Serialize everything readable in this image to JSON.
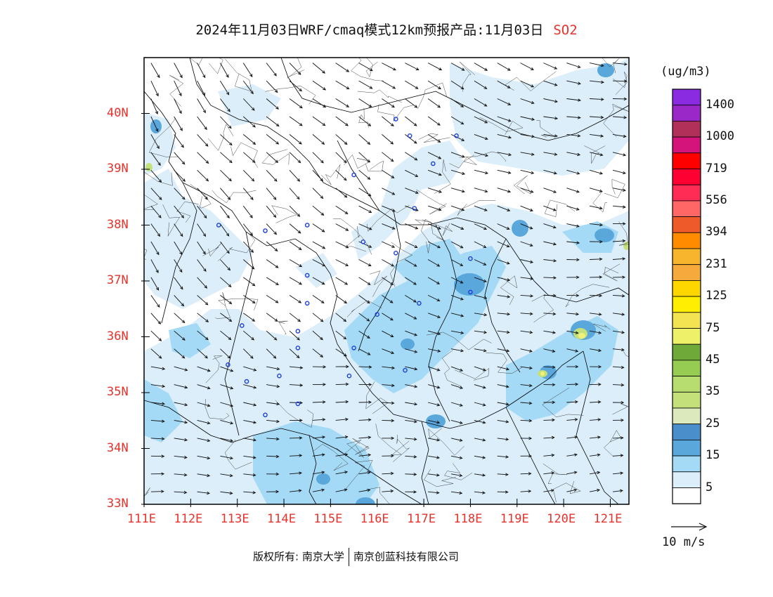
{
  "title": {
    "text": "2024年11月03日WRF/cmaq模式12km预报产品:11月03日",
    "pollutant": "SO2"
  },
  "map": {
    "lat_labels": [
      "40N",
      "39N",
      "38N",
      "37N",
      "36N",
      "35N",
      "34N",
      "33N"
    ],
    "lon_labels": [
      "111E",
      "112E",
      "113E",
      "114E",
      "115E",
      "116E",
      "117E",
      "118E",
      "119E",
      "120E",
      "121E"
    ],
    "lat_range": [
      33,
      41
    ],
    "lon_range": [
      111,
      121.4
    ],
    "fill_colors": {
      "background": "#ffffff",
      "level_5": "#dbeefa",
      "level_15": "#a4daf6",
      "level_25": "#5aa7dc",
      "level_35": "#c3e07a",
      "level_75": "#f0f07a"
    },
    "monitoring_sites": [
      [
        116.4,
        39.9
      ],
      [
        116.7,
        39.6
      ],
      [
        117.2,
        39.1
      ],
      [
        117.7,
        39.6
      ],
      [
        115.5,
        38.9
      ],
      [
        116.8,
        38.3
      ],
      [
        114.5,
        38.0
      ],
      [
        113.6,
        37.9
      ],
      [
        112.6,
        38.0
      ],
      [
        115.7,
        37.7
      ],
      [
        116.4,
        37.5
      ],
      [
        114.5,
        37.1
      ],
      [
        114.5,
        36.6
      ],
      [
        116.0,
        36.4
      ],
      [
        116.9,
        36.6
      ],
      [
        118.0,
        36.8
      ],
      [
        118.0,
        37.4
      ],
      [
        113.1,
        36.2
      ],
      [
        114.3,
        36.1
      ],
      [
        114.3,
        35.8
      ],
      [
        115.5,
        35.8
      ],
      [
        112.8,
        35.5
      ],
      [
        113.2,
        35.2
      ],
      [
        113.9,
        35.3
      ],
      [
        115.4,
        35.3
      ],
      [
        116.6,
        35.4
      ],
      [
        114.3,
        34.8
      ],
      [
        113.6,
        34.6
      ]
    ]
  },
  "legend": {
    "unit": "(ug/m3)",
    "colors": [
      "#ffffff",
      "#dbeefa",
      "#a4daf6",
      "#5aa7dc",
      "#4a8fcb",
      "#dbe9bd",
      "#c3e07a",
      "#b7dc70",
      "#96cc52",
      "#6ea93a",
      "#eef068",
      "#f3e352",
      "#ffee00",
      "#ffd700",
      "#f6aa3c",
      "#f7b52e",
      "#ff8c00",
      "#ee5a28",
      "#ff6666",
      "#ff2d55",
      "#ff0033",
      "#ff0000",
      "#d4147a",
      "#b0305a",
      "#9a28c8",
      "#8a2be2"
    ],
    "tick_labels": [
      "5",
      "15",
      "25",
      "35",
      "45",
      "75",
      "125",
      "231",
      "394",
      "556",
      "719",
      "1000",
      "1400"
    ],
    "wind_reference": "10 m/s"
  },
  "footer": {
    "copyright": "版权所有: 南京大学",
    "company": "南京创蓝科技有限公司"
  }
}
